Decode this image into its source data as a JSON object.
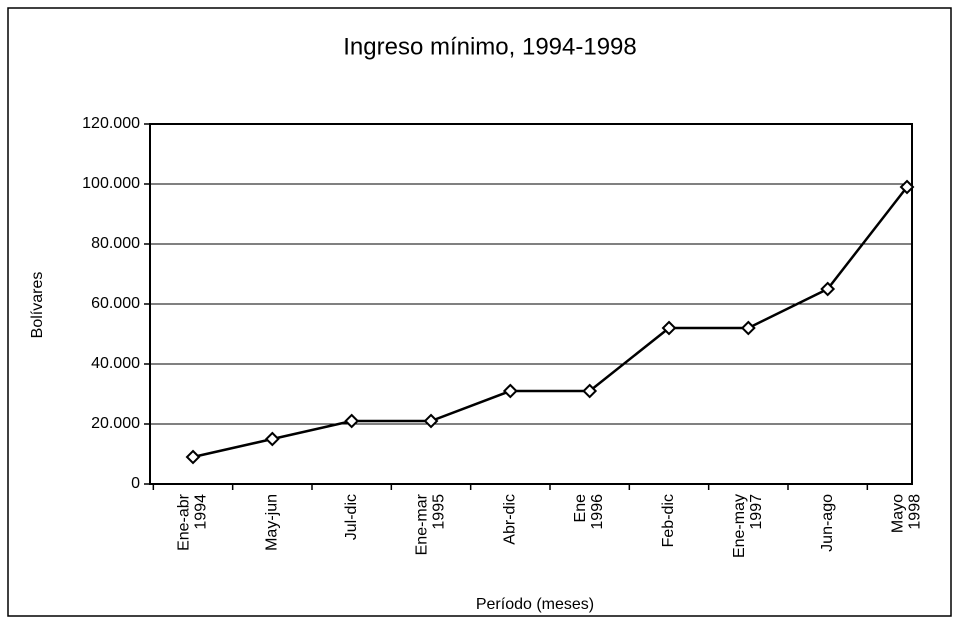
{
  "chart_data": {
    "type": "line",
    "title": "Ingreso mínimo, 1994-1998",
    "x_label": "Período (meses)",
    "y_label": "Bolívares",
    "categories": [
      "Ene-abr 1994",
      "May-jun",
      "Jul-dic",
      "Ene-mar 1995",
      "Abr-dic",
      "Ene 1996",
      "Feb-dic",
      "Ene-may 1997",
      "Jun-ago",
      "Mayo 1998"
    ],
    "series": [
      {
        "name": "Ingreso mínimo",
        "color": "#000000",
        "values": [
          9000,
          15000,
          21000,
          21000,
          31000,
          31000,
          52000,
          52000,
          65000,
          99000
        ]
      }
    ],
    "ylim": [
      0,
      120000
    ],
    "yticks": [
      0,
      {
        "value": 20000,
        "label": "20.000"
      },
      {
        "value": 40000,
        "label": "40.000"
      },
      {
        "value": 60000,
        "label": "60.000"
      },
      {
        "value": 80000,
        "label": "80.000"
      },
      {
        "value": 100000,
        "label": "100.000"
      },
      {
        "value": 120000,
        "label": "120.000"
      }
    ],
    "grid": true,
    "marker": "diamond"
  }
}
